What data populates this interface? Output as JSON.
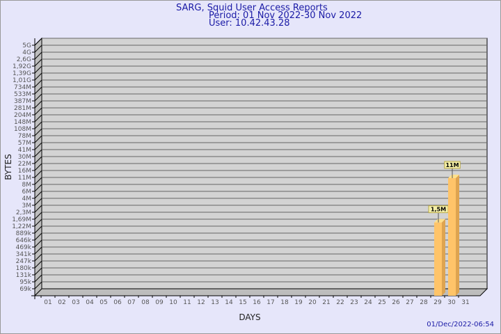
{
  "chart_data": {
    "type": "bar",
    "title": "SARG, Squid User Access Reports",
    "subtitle": [
      "Period: 01 Nov 2022-30 Nov 2022",
      "User: 10.42.43.28"
    ],
    "xlabel": "DAYS",
    "ylabel": "BYTES",
    "y_scale": "log",
    "y_tick_labels": [
      "5G",
      "4G",
      "2,6G",
      "1,92G",
      "1,39G",
      "1,01G",
      "734M",
      "533M",
      "387M",
      "281M",
      "204M",
      "148M",
      "108M",
      "78M",
      "57M",
      "41M",
      "30M",
      "22M",
      "16M",
      "11M",
      "8M",
      "6M",
      "4M",
      "3M",
      "2,3M",
      "1,69M",
      "1,22M",
      "889k",
      "646k",
      "469k",
      "341k",
      "247k",
      "180k",
      "131k",
      "95k",
      "69k"
    ],
    "categories": [
      "01",
      "02",
      "03",
      "04",
      "05",
      "06",
      "07",
      "08",
      "09",
      "10",
      "11",
      "12",
      "13",
      "14",
      "15",
      "16",
      "17",
      "18",
      "19",
      "20",
      "21",
      "22",
      "23",
      "24",
      "25",
      "26",
      "27",
      "28",
      "29",
      "30",
      "31"
    ],
    "bars": [
      {
        "day": "29",
        "value": 1500000,
        "label": "1,5M"
      },
      {
        "day": "30",
        "value": 11000000,
        "label": "11M"
      }
    ],
    "grid": true,
    "colors": {
      "bar": "#ffc469",
      "bar_side": "#dea450",
      "bar_top": "#ffe08a",
      "wall": "#d3d3d3",
      "label_bg": "#f5f0a8",
      "title": "#1a1aa6"
    }
  },
  "footer": {
    "timestamp": "01/Dec/2022-06:54"
  }
}
